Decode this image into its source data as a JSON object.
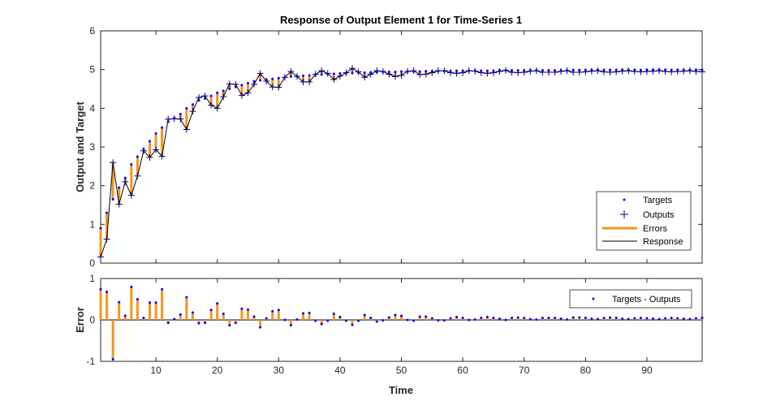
{
  "chart_data": [
    {
      "type": "line",
      "title": "Response of Output Element 1 for Time-Series 1",
      "xlabel": "",
      "ylabel": "Output and Target",
      "xlim": [
        1,
        99
      ],
      "ylim": [
        0,
        6
      ],
      "yticks": [
        0,
        1,
        2,
        3,
        4,
        5,
        6
      ],
      "legend_position": "bottom-right",
      "legend": [
        "Targets",
        "Outputs",
        "Errors",
        "Response"
      ],
      "x": [
        1,
        2,
        3,
        4,
        5,
        6,
        7,
        8,
        9,
        10,
        11,
        12,
        13,
        14,
        15,
        16,
        17,
        18,
        19,
        20,
        21,
        22,
        23,
        24,
        25,
        26,
        27,
        28,
        29,
        30,
        31,
        32,
        33,
        34,
        35,
        36,
        37,
        38,
        39,
        40,
        41,
        42,
        43,
        44,
        45,
        46,
        47,
        48,
        49,
        50,
        51,
        52,
        53,
        54,
        55,
        56,
        57,
        58,
        59,
        60,
        61,
        62,
        63,
        64,
        65,
        66,
        67,
        68,
        69,
        70,
        71,
        72,
        73,
        74,
        75,
        76,
        77,
        78,
        79,
        80,
        81,
        82,
        83,
        84,
        85,
        86,
        87,
        88,
        89,
        90,
        91,
        92,
        93,
        94,
        95,
        96,
        97,
        98,
        99
      ],
      "series": [
        {
          "name": "Targets",
          "values": [
            0.9,
            1.3,
            1.65,
            1.95,
            2.2,
            2.55,
            2.75,
            2.95,
            3.15,
            3.35,
            3.5,
            3.65,
            3.75,
            3.85,
            4.0,
            4.1,
            4.2,
            4.25,
            4.32,
            4.4,
            4.45,
            4.5,
            4.55,
            4.6,
            4.65,
            4.7,
            4.72,
            4.74,
            4.76,
            4.78,
            4.8,
            4.82,
            4.83,
            4.84,
            4.85,
            4.86,
            4.87,
            4.88,
            4.89,
            4.9,
            4.9,
            4.91,
            4.92,
            4.92,
            4.93,
            4.93,
            4.94,
            4.94,
            4.94,
            4.95,
            4.95,
            4.95,
            4.95,
            4.96,
            4.96,
            4.96,
            4.96,
            4.96,
            4.97,
            4.97,
            4.97,
            4.97,
            4.97,
            4.97,
            4.97,
            4.98,
            4.98,
            4.98,
            4.98,
            4.98,
            4.98,
            4.98,
            4.98,
            4.98,
            4.98,
            4.98,
            4.98,
            4.99,
            4.99,
            4.99,
            4.99,
            4.99,
            4.99,
            4.99,
            4.99,
            4.99,
            4.99,
            4.99,
            4.99,
            4.99,
            4.99,
            4.99,
            4.99,
            4.99,
            4.99,
            4.99,
            4.99,
            4.99,
            4.99
          ]
        },
        {
          "name": "Outputs",
          "values": [
            0.16,
            0.62,
            2.6,
            1.52,
            2.1,
            1.75,
            2.25,
            2.9,
            2.73,
            2.93,
            2.76,
            3.72,
            3.73,
            3.72,
            3.45,
            3.92,
            4.28,
            4.32,
            4.08,
            4.0,
            4.3,
            4.63,
            4.62,
            4.33,
            4.4,
            4.62,
            4.9,
            4.7,
            4.55,
            4.54,
            4.8,
            4.95,
            4.82,
            4.68,
            4.68,
            4.88,
            4.97,
            4.9,
            4.74,
            4.83,
            4.92,
            5.03,
            4.94,
            4.8,
            4.88,
            4.97,
            4.95,
            4.88,
            4.82,
            4.85,
            4.95,
            4.97,
            4.87,
            4.88,
            4.92,
            4.97,
            4.97,
            4.92,
            4.9,
            4.92,
            4.97,
            4.96,
            4.92,
            4.9,
            4.92,
            4.95,
            4.98,
            4.93,
            4.92,
            4.93,
            4.96,
            4.97,
            4.93,
            4.93,
            4.93,
            4.95,
            4.97,
            4.93,
            4.93,
            4.94,
            4.96,
            4.97,
            4.94,
            4.93,
            4.94,
            4.96,
            4.97,
            4.95,
            4.94,
            4.95,
            4.96,
            4.97,
            4.95,
            4.94,
            4.95,
            4.96,
            4.97,
            4.95,
            4.94
          ]
        }
      ]
    },
    {
      "type": "bar",
      "title": "",
      "xlabel": "Time",
      "ylabel": "Error",
      "xlim": [
        1,
        99
      ],
      "ylim": [
        -1,
        1
      ],
      "yticks": [
        -1,
        0,
        1
      ],
      "xticks": [
        10,
        20,
        30,
        40,
        50,
        60,
        70,
        80,
        90
      ],
      "legend_position": "top-right",
      "legend": [
        "Targets - Outputs"
      ],
      "series": [
        {
          "name": "Targets - Outputs",
          "derived": "Targets minus Outputs"
        }
      ]
    }
  ]
}
